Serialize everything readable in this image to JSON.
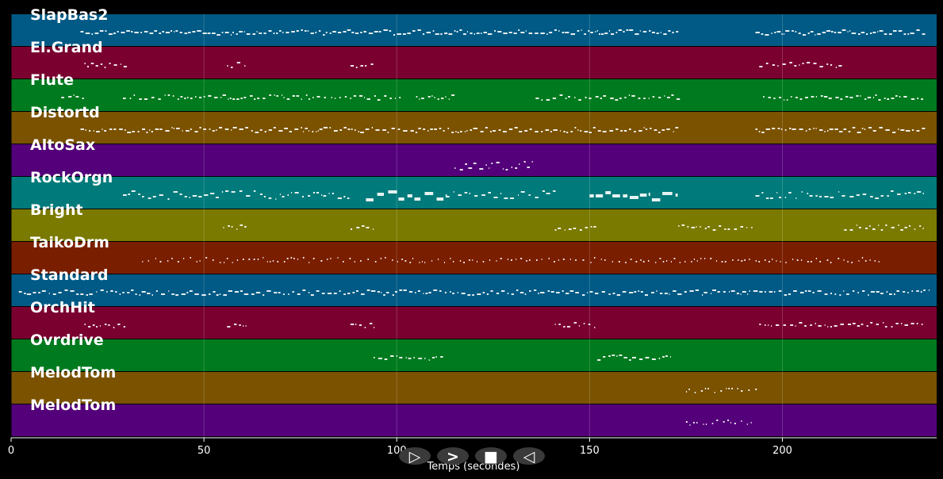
{
  "axis": {
    "xlabel": "Temps (secondes)",
    "xlim": [
      0,
      240
    ],
    "ticks": [
      {
        "value": 0,
        "label": "0"
      },
      {
        "value": 50,
        "label": "50"
      },
      {
        "value": 100,
        "label": "100"
      },
      {
        "value": 150,
        "label": "150"
      },
      {
        "value": 200,
        "label": "200"
      }
    ]
  },
  "tracks": [
    {
      "name": "SlapBas2",
      "color": "#005a85",
      "segments": [
        [
          18,
          173,
          0.7,
          1,
          1.0
        ],
        [
          193,
          237,
          0.7,
          1,
          1.1
        ]
      ]
    },
    {
      "name": "El.Grand",
      "color": "#7a0030",
      "segments": [
        [
          19,
          30,
          0.45,
          0.8,
          0.7
        ],
        [
          56,
          61,
          0.45,
          0.8,
          0.7
        ],
        [
          88,
          94,
          0.45,
          0.8,
          0.7
        ],
        [
          194,
          216,
          0.45,
          0.8,
          0.7
        ]
      ]
    },
    {
      "name": "Flute",
      "color": "#007a1e",
      "segments": [
        [
          13,
          19,
          0.45,
          0.8,
          0.7
        ],
        [
          29,
          82,
          0.45,
          0.8,
          0.7
        ],
        [
          83,
          101,
          0.45,
          0.8,
          0.7
        ],
        [
          105,
          115,
          0.45,
          0.8,
          0.8
        ],
        [
          136,
          174,
          0.45,
          0.8,
          0.7
        ],
        [
          195,
          237,
          0.45,
          0.8,
          0.7
        ]
      ]
    },
    {
      "name": "Distortd",
      "color": "#7a5200",
      "segments": [
        [
          18,
          173,
          0.6,
          1,
          1.6
        ],
        [
          193,
          237,
          0.6,
          1,
          1.2
        ]
      ]
    },
    {
      "name": "AltoSax",
      "color": "#54007a",
      "segments": [
        [
          115,
          136,
          0.45,
          0.9,
          1.0
        ]
      ]
    },
    {
      "name": "RockOrgn",
      "color": "#007a7a",
      "segments": [
        [
          29,
          88,
          0.4,
          1.0,
          1.8
        ],
        [
          92,
          113,
          0.4,
          1.0,
          4.0
        ],
        [
          113,
          142,
          0.4,
          1.0,
          1.5
        ],
        [
          150,
          173,
          0.4,
          1.0,
          4.0
        ],
        [
          193,
          237,
          0.35,
          1.0,
          1.4
        ]
      ]
    },
    {
      "name": "Bright",
      "color": "#7a7a00",
      "segments": [
        [
          55,
          61,
          0.45,
          0.8,
          0.7
        ],
        [
          88,
          94,
          0.45,
          0.8,
          0.7
        ],
        [
          141,
          152,
          0.45,
          0.8,
          0.7
        ],
        [
          173,
          193,
          0.45,
          0.8,
          0.6
        ],
        [
          216,
          237,
          0.45,
          0.8,
          0.7
        ]
      ]
    },
    {
      "name": "TaikoDrm",
      "color": "#7a1e00",
      "segments": [
        [
          34,
          226,
          0.15,
          0.25,
          0.25
        ]
      ]
    },
    {
      "name": "Standard",
      "color": "#005a85",
      "segments": [
        [
          2,
          238,
          0.55,
          1,
          0.8
        ]
      ]
    },
    {
      "name": "OrchHit",
      "color": "#7a0030",
      "segments": [
        [
          19,
          30,
          0.45,
          0.8,
          0.7
        ],
        [
          56,
          61,
          0.45,
          0.8,
          0.7
        ],
        [
          88,
          94,
          0.45,
          0.8,
          0.7
        ],
        [
          141,
          152,
          0.45,
          0.8,
          0.7
        ],
        [
          194,
          237,
          0.45,
          0.8,
          0.7
        ]
      ]
    },
    {
      "name": "Ovrdrive",
      "color": "#007a1e",
      "segments": [
        [
          94,
          112,
          0.55,
          0.9,
          1.0
        ],
        [
          152,
          171,
          0.55,
          0.9,
          1.0
        ]
      ]
    },
    {
      "name": "MelodTom",
      "color": "#7a5200",
      "segments": [
        [
          175,
          194,
          0.25,
          0.35,
          0.5
        ]
      ]
    },
    {
      "name": "MelodTom",
      "color": "#54007a",
      "segments": [
        [
          175,
          193,
          0.25,
          0.35,
          0.5
        ]
      ]
    }
  ],
  "controls": [
    {
      "name": "play-outline-button",
      "glyph": "▷"
    },
    {
      "name": "fast-forward-button",
      "glyph": ">"
    },
    {
      "name": "stop-button",
      "glyph": "■"
    },
    {
      "name": "rewind-button",
      "glyph": "◁"
    }
  ]
}
